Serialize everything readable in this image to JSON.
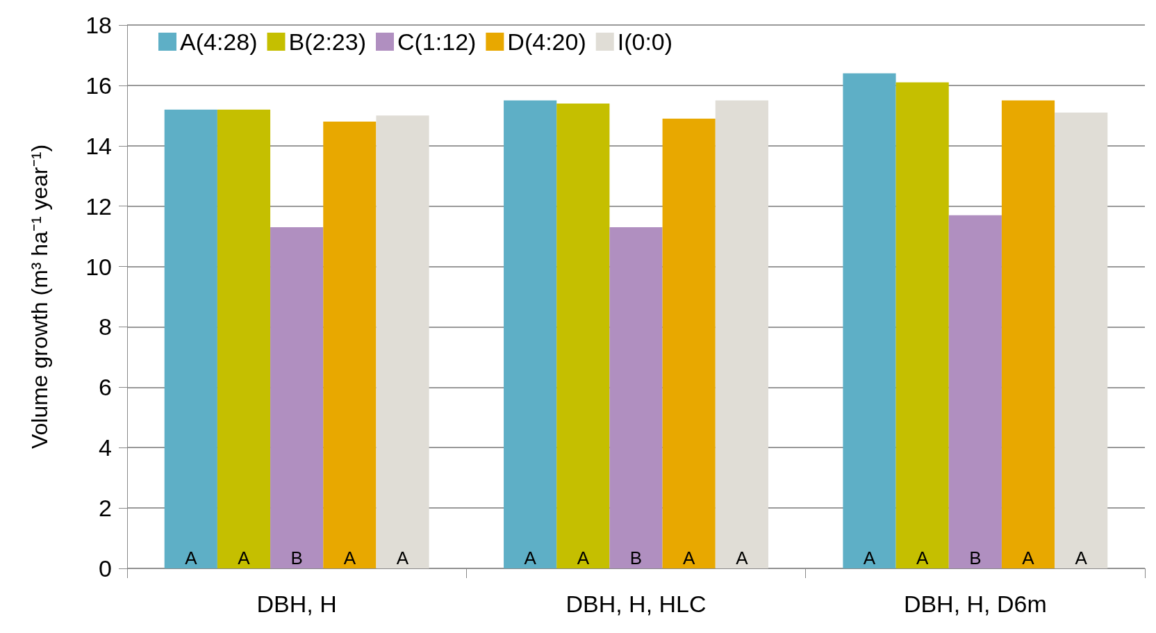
{
  "chart_data": {
    "type": "bar",
    "ylabel": "Volume growth (m³ ha⁻¹ year⁻¹)",
    "categories": [
      "DBH, H",
      "DBH, H, HLC",
      "DBH, H, D6m"
    ],
    "series": [
      {
        "name": "A(4:28)",
        "color": "#5eafc6",
        "values": [
          15.2,
          15.5,
          16.4
        ],
        "value_labels": [
          "A",
          "A",
          "A"
        ]
      },
      {
        "name": "B(2:23)",
        "color": "#c5bf00",
        "values": [
          15.2,
          15.4,
          16.1
        ],
        "value_labels": [
          "A",
          "A",
          "A"
        ]
      },
      {
        "name": "C(1:12)",
        "color": "#b08fc0",
        "values": [
          11.3,
          11.3,
          11.7
        ],
        "value_labels": [
          "B",
          "B",
          "B"
        ]
      },
      {
        "name": "D(4:20)",
        "color": "#e8a800",
        "values": [
          14.8,
          14.9,
          15.5
        ],
        "value_labels": [
          "A",
          "A",
          "A"
        ]
      },
      {
        "name": "I(0:0)",
        "color": "#e0ddd6",
        "values": [
          15.0,
          15.5,
          15.1
        ],
        "value_labels": [
          "A",
          "A",
          "A"
        ]
      }
    ],
    "ylim": [
      0,
      18
    ],
    "yticks": [
      0,
      2,
      4,
      6,
      8,
      10,
      12,
      14,
      16,
      18
    ],
    "grid": "y",
    "legend": "top left"
  }
}
